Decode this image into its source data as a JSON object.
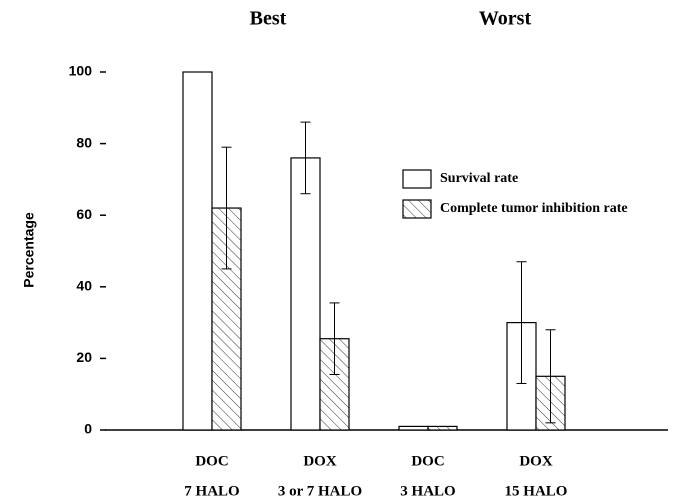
{
  "chart_data": {
    "type": "bar",
    "annotations": [
      "Best",
      "Worst"
    ],
    "ylabel": "Percentage",
    "categories": [
      [
        "DOC",
        "7 HALO"
      ],
      [
        "DOX",
        "3 or 7 HALO"
      ],
      [
        "DOC",
        "3 HALO"
      ],
      [
        "DOX",
        "15 HALO"
      ]
    ],
    "series": [
      {
        "name": "Survival rate",
        "color": "#ffffff",
        "values": [
          100,
          76,
          1,
          30
        ],
        "errors": [
          null,
          10,
          null,
          17
        ]
      },
      {
        "name": "Complete tumor inhibition rate",
        "color": "#ffffff",
        "pattern": "hatch",
        "values": [
          62,
          25.5,
          1,
          15
        ],
        "errors": [
          17,
          10,
          null,
          13
        ]
      }
    ],
    "ylim": [
      0,
      100
    ],
    "yticks": [
      0,
      20,
      40,
      60,
      80,
      100
    ],
    "grid": false
  }
}
